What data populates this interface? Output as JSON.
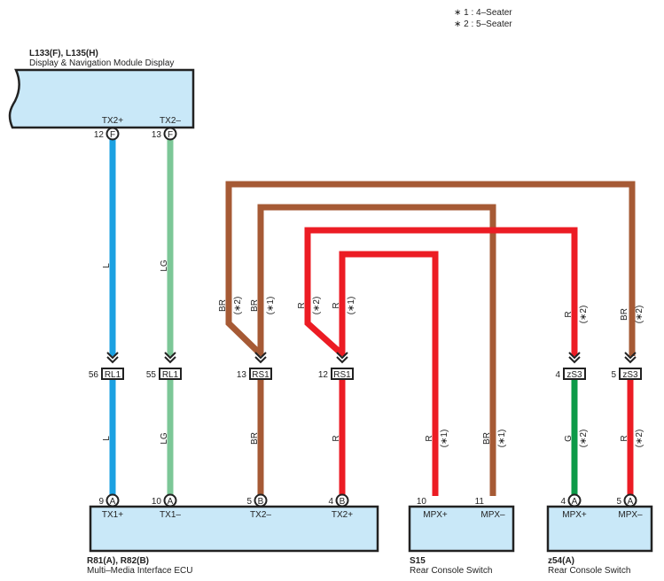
{
  "notes": [
    "∗ 1 : 4–Seater",
    "∗ 2 : 5–Seater"
  ],
  "colors": {
    "L": "#1ba1e2",
    "LG": "#7cc797",
    "BR": "#a65a35",
    "R": "#ec1c24",
    "G": "#0d9a48",
    "box": "#c9e8f8"
  },
  "display": {
    "code": "L133(F), L135(H)",
    "name": "Display & Navigation Module Display",
    "pins": [
      {
        "num": "12",
        "conn": "F",
        "label": "TX2+"
      },
      {
        "num": "13",
        "conn": "F",
        "label": "TX2–"
      }
    ]
  },
  "ecu": {
    "code": "R81(A), R82(B)",
    "name": "Multi–Media Interface ECU",
    "pins": [
      {
        "num": "9",
        "conn": "A",
        "label": "TX1+"
      },
      {
        "num": "10",
        "conn": "A",
        "label": "TX1–"
      },
      {
        "num": "5",
        "conn": "B",
        "label": "TX2–"
      },
      {
        "num": "4",
        "conn": "B",
        "label": "TX2+"
      }
    ]
  },
  "s15": {
    "code": "S15",
    "name": "Rear Console Switch",
    "pins": [
      {
        "num": "10",
        "label": "MPX+"
      },
      {
        "num": "11",
        "label": "MPX–"
      }
    ]
  },
  "z54": {
    "code": "z54(A)",
    "name": "Rear Console Switch",
    "pins": [
      {
        "num": "4",
        "conn": "A",
        "label": "MPX+"
      },
      {
        "num": "5",
        "conn": "A",
        "label": "MPX–"
      }
    ]
  },
  "junctions": [
    {
      "num": "56",
      "name": "RL1"
    },
    {
      "num": "55",
      "name": "RL1"
    },
    {
      "num": "13",
      "name": "RS1"
    },
    {
      "num": "12",
      "name": "RS1"
    },
    {
      "num": "4",
      "name": "zS3"
    },
    {
      "num": "5",
      "name": "zS3"
    }
  ],
  "wire_labels": {
    "L": "L",
    "LG": "LG",
    "BR": "BR",
    "R": "R",
    "G": "G",
    "n1": "(∗1)",
    "n2": "(∗2)"
  }
}
